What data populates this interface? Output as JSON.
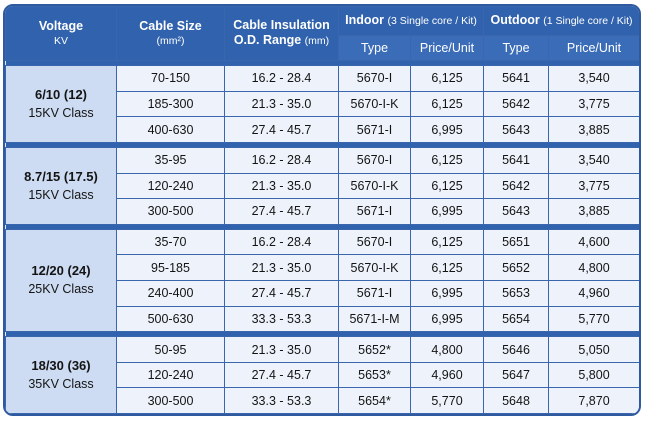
{
  "headers": {
    "voltage": "Voltage",
    "voltage_unit": "KV",
    "cable_size": "Cable Size",
    "cable_size_unit": "(mm²)",
    "insulation": "Cable Insulation",
    "insulation_range": "O.D. Range",
    "insulation_unit": "(mm)",
    "indoor": "Indoor",
    "indoor_note": "(3 Single core / Kit)",
    "outdoor": "Outdoor",
    "outdoor_note": "(1 Single core / Kit)",
    "type": "Type",
    "price": "Price/Unit"
  },
  "groups": [
    {
      "voltage": "6/10 (12)",
      "class": "15KV Class",
      "rows": [
        {
          "size": "70-150",
          "od": "16.2 - 28.4",
          "in_type": "5670-I",
          "in_price": "6,125",
          "out_type": "5641",
          "out_price": "3,540"
        },
        {
          "size": "185-300",
          "od": "21.3 - 35.0",
          "in_type": "5670-I-K",
          "in_price": "6,125",
          "out_type": "5642",
          "out_price": "3,775"
        },
        {
          "size": "400-630",
          "od": "27.4 - 45.7",
          "in_type": "5671-I",
          "in_price": "6,995",
          "out_type": "5643",
          "out_price": "3,885"
        }
      ]
    },
    {
      "voltage": "8.7/15 (17.5)",
      "class": "15KV Class",
      "rows": [
        {
          "size": "35-95",
          "od": "16.2 - 28.4",
          "in_type": "5670-I",
          "in_price": "6,125",
          "out_type": "5641",
          "out_price": "3,540"
        },
        {
          "size": "120-240",
          "od": "21.3 - 35.0",
          "in_type": "5670-I-K",
          "in_price": "6,125",
          "out_type": "5642",
          "out_price": "3,775"
        },
        {
          "size": "300-500",
          "od": "27.4 - 45.7",
          "in_type": "5671-I",
          "in_price": "6,995",
          "out_type": "5643",
          "out_price": "3,885"
        }
      ]
    },
    {
      "voltage": "12/20 (24)",
      "class": "25KV Class",
      "rows": [
        {
          "size": "35-70",
          "od": "16.2 - 28.4",
          "in_type": "5670-I",
          "in_price": "6,125",
          "out_type": "5651",
          "out_price": "4,600"
        },
        {
          "size": "95-185",
          "od": "21.3 - 35.0",
          "in_type": "5670-I-K",
          "in_price": "6,125",
          "out_type": "5652",
          "out_price": "4,800"
        },
        {
          "size": "240-400",
          "od": "27.4 - 45.7",
          "in_type": "5671-I",
          "in_price": "6,995",
          "out_type": "5653",
          "out_price": "4,960"
        },
        {
          "size": "500-630",
          "od": "33.3 - 53.3",
          "in_type": "5671-I-M",
          "in_price": "6,995",
          "out_type": "5654",
          "out_price": "5,770"
        }
      ]
    },
    {
      "voltage": "18/30 (36)",
      "class": "35KV Class",
      "rows": [
        {
          "size": "50-95",
          "od": "21.3 - 35.0",
          "in_type": "5652*",
          "in_price": "4,800",
          "out_type": "5646",
          "out_price": "5,050"
        },
        {
          "size": "120-240",
          "od": "27.4 - 45.7",
          "in_type": "5653*",
          "in_price": "4,960",
          "out_type": "5647",
          "out_price": "5,800"
        },
        {
          "size": "300-500",
          "od": "33.3 - 53.3",
          "in_type": "5654*",
          "in_price": "5,770",
          "out_type": "5648",
          "out_price": "7,870"
        }
      ]
    }
  ]
}
